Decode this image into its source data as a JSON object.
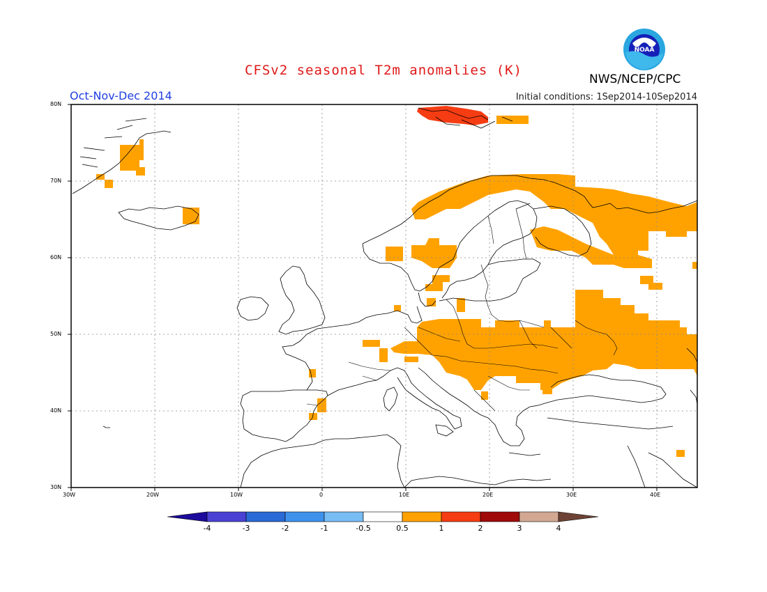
{
  "header": {
    "title": "CFSv2 seasonal T2m anomalies (K)",
    "period": "Oct-Nov-Dec 2014",
    "initial_conditions": "Initial conditions: 1Sep2014-10Sep2014",
    "org": "NWS/NCEP/CPC",
    "logo_text": "NOAA"
  },
  "map": {
    "lon_range": [
      -30,
      45
    ],
    "lat_range": [
      30,
      80
    ],
    "lat_labels": [
      "80N",
      "70N",
      "60N",
      "50N",
      "40N",
      "30N"
    ],
    "lon_labels": [
      "30W",
      "20W",
      "10W",
      "0",
      "10E",
      "20E",
      "30E",
      "40E"
    ],
    "anomaly_regions": [
      {
        "name": "svalbard",
        "level": "1-2",
        "color": "#f53c12"
      },
      {
        "name": "scandinavia-north",
        "level": "0.5-1",
        "color": "#ffa200"
      },
      {
        "name": "russia-northwest",
        "level": "0.5-1",
        "color": "#ffa200"
      },
      {
        "name": "eastern-europe",
        "level": "0.5-1",
        "color": "#ffa200"
      },
      {
        "name": "greenland-east",
        "level": "0.5-1",
        "color": "#ffa200"
      },
      {
        "name": "iceland-east",
        "level": "0.5-1",
        "color": "#ffa200"
      },
      {
        "name": "spain-east",
        "level": "0.5-1",
        "color": "#ffa200"
      }
    ]
  },
  "colorbar": {
    "labels": [
      "-4",
      "-3",
      "-2",
      "-1",
      "-0.5",
      "0.5",
      "1",
      "2",
      "3",
      "4"
    ],
    "colors": [
      "#1c0b9c",
      "#4a41d4",
      "#2a6ad6",
      "#3f92ec",
      "#78bcf4",
      "#ffffff",
      "#ffa200",
      "#f53c12",
      "#a00a0a",
      "#d2a893",
      "#6e4336"
    ]
  }
}
